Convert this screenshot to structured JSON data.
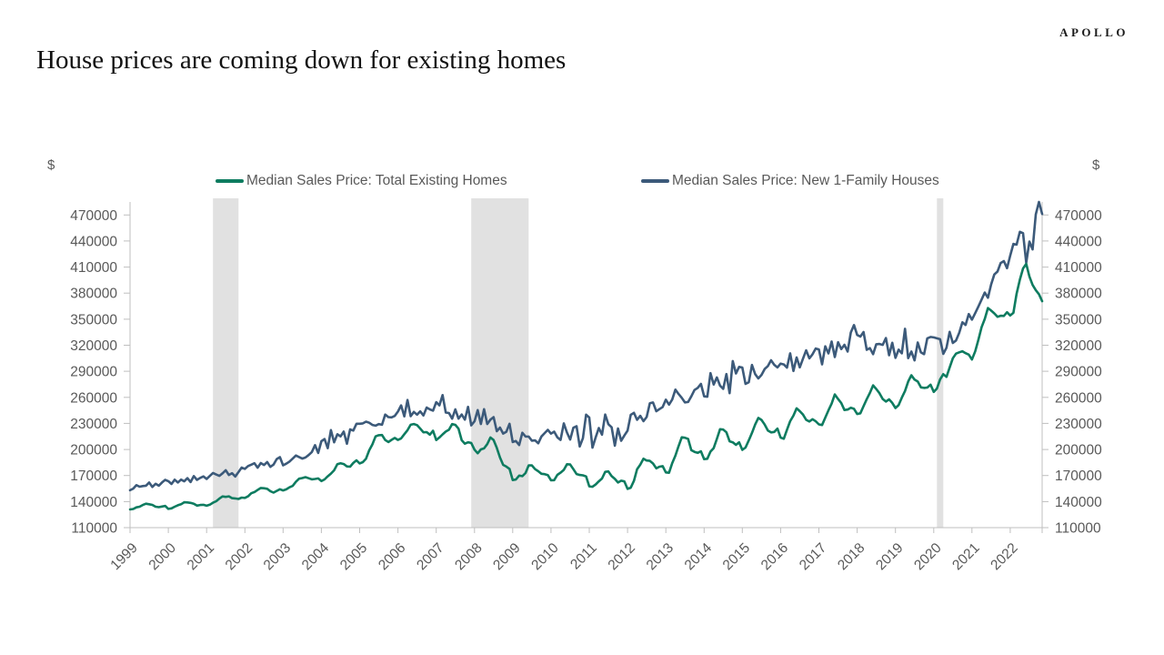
{
  "brand": {
    "logo": "APOLLO"
  },
  "title": "House prices are coming down for existing homes",
  "axes": {
    "left_unit": "$",
    "right_unit": "$"
  },
  "legend": [
    {
      "label": "Median Sales Price: Total Existing Homes",
      "color": "#0E7C60"
    },
    {
      "label": "Median Sales Price: New 1-Family Houses",
      "color": "#3C5A7A"
    }
  ],
  "colors": {
    "band": "#E1E1E1",
    "axis": "#BFBFBF",
    "tick_text": "#595959",
    "title_text": "#121212"
  },
  "chart_data": {
    "type": "line",
    "title": "House prices are coming down for existing homes",
    "xlabel": "",
    "ylabel": "$",
    "x_unit": "month",
    "x_start": "1999-01",
    "x_end": "2022-11",
    "x_tick_labels": [
      "1999",
      "2000",
      "2001",
      "2002",
      "2003",
      "2004",
      "2005",
      "2006",
      "2007",
      "2008",
      "2009",
      "2010",
      "2011",
      "2012",
      "2013",
      "2014",
      "2015",
      "2016",
      "2017",
      "2018",
      "2019",
      "2020",
      "2021",
      "2022"
    ],
    "y_ticks": [
      110000,
      140000,
      170000,
      200000,
      230000,
      260000,
      290000,
      320000,
      350000,
      380000,
      410000,
      440000,
      470000
    ],
    "ylim": [
      110000,
      470000
    ],
    "y_unit": "USD",
    "grid": false,
    "legend_position": "top",
    "recession_bands": [
      {
        "from": "2001-03",
        "to": "2001-11"
      },
      {
        "from": "2007-12",
        "to": "2009-06"
      },
      {
        "from": "2020-02",
        "to": "2020-04"
      }
    ],
    "series": [
      {
        "name": "Median Sales Price: Total Existing Homes",
        "color": "#0E7C60",
        "values": [
          131000,
          131500,
          133400,
          134100,
          136100,
          137500,
          136900,
          136200,
          134100,
          133600,
          134300,
          135000,
          131600,
          132200,
          134100,
          135800,
          136900,
          139200,
          139000,
          138500,
          137500,
          135400,
          136100,
          136300,
          135200,
          136400,
          138700,
          140400,
          143400,
          145900,
          145400,
          146000,
          143900,
          143600,
          143000,
          144600,
          144200,
          146000,
          149600,
          151000,
          153400,
          155700,
          155400,
          154700,
          152000,
          150300,
          152300,
          154200,
          152800,
          154100,
          156400,
          158100,
          162800,
          166400,
          167100,
          168100,
          166900,
          165600,
          166000,
          166700,
          163600,
          165500,
          169100,
          172200,
          176000,
          183100,
          184200,
          183200,
          180500,
          180200,
          184500,
          187500,
          184000,
          185400,
          189400,
          199000,
          205800,
          215100,
          216400,
          216600,
          210900,
          208600,
          211100,
          213300,
          211000,
          212800,
          217600,
          222200,
          228500,
          229300,
          228000,
          224100,
          219800,
          220000,
          217000,
          221600,
          210900,
          213800,
          217400,
          220600,
          222700,
          229200,
          228400,
          224000,
          210700,
          206700,
          208300,
          207500,
          199800,
          195600,
          200100,
          201200,
          206200,
          213800,
          210900,
          201900,
          190800,
          182300,
          180300,
          177700,
          164800,
          165400,
          169900,
          169300,
          172800,
          181800,
          181600,
          177300,
          174900,
          172000,
          171600,
          170500,
          164600,
          164700,
          170700,
          173300,
          176500,
          183000,
          182700,
          177300,
          171700,
          170600,
          170200,
          169000,
          157600,
          157000,
          159600,
          163300,
          166600,
          174200,
          174700,
          169300,
          166100,
          161900,
          164000,
          163200,
          154600,
          156000,
          163800,
          177400,
          182600,
          189400,
          187300,
          186900,
          183800,
          178300,
          180200,
          180800,
          173600,
          173200,
          184300,
          192800,
          203900,
          214000,
          213500,
          212100,
          199200,
          197200,
          196100,
          197900,
          188900,
          189300,
          197600,
          201500,
          212100,
          223300,
          222900,
          219800,
          209400,
          208300,
          205300,
          208200,
          199600,
          202200,
          210400,
          219000,
          228700,
          236300,
          234000,
          228700,
          221900,
          219700,
          220200,
          224100,
          213700,
          212300,
          222700,
          232500,
          238900,
          247400,
          244100,
          240200,
          234100,
          232200,
          234900,
          232400,
          228900,
          228100,
          236600,
          245000,
          252800,
          263300,
          258100,
          253400,
          245400,
          246000,
          248000,
          246800,
          240800,
          241700,
          249800,
          257900,
          265100,
          273800,
          269600,
          264800,
          258100,
          255200,
          257700,
          253600,
          247700,
          251100,
          259700,
          267300,
          278200,
          285400,
          280400,
          278200,
          271500,
          270900,
          271300,
          274500,
          266300,
          270100,
          280600,
          286700,
          283600,
          294400,
          305000,
          310400,
          311800,
          313100,
          310900,
          309200,
          303600,
          313000,
          326300,
          340700,
          350300,
          362800,
          359900,
          356700,
          352800,
          353900,
          353700,
          358000,
          354300,
          357300,
          379300,
          395500,
          408400,
          413800,
          399200,
          389500,
          383500,
          378800,
          370700
        ]
      },
      {
        "name": "Median Sales Price: New 1-Family Houses",
        "color": "#3C5A7A",
        "values": [
          153000,
          154900,
          158900,
          157100,
          157900,
          158300,
          162000,
          156800,
          160500,
          158300,
          162000,
          165000,
          163500,
          160300,
          165200,
          162000,
          165300,
          163300,
          167000,
          162500,
          169400,
          165000,
          167300,
          169000,
          166000,
          169500,
          172900,
          171200,
          169600,
          172500,
          176100,
          170600,
          172600,
          168900,
          173900,
          179100,
          177700,
          180900,
          182500,
          184200,
          179000,
          184400,
          182100,
          185500,
          180000,
          182600,
          189000,
          191200,
          181700,
          183600,
          186000,
          189500,
          193100,
          191300,
          189500,
          190800,
          193600,
          197000,
          205000,
          196000,
          209500,
          212000,
          201400,
          222300,
          208200,
          217600,
          215100,
          220600,
          206600,
          223100,
          221800,
          229600,
          229600,
          230000,
          232000,
          230800,
          228300,
          227400,
          229200,
          228500,
          240200,
          237300,
          237000,
          238600,
          243700,
          250800,
          238100,
          257000,
          238300,
          243200,
          240100,
          243900,
          239100,
          248300,
          246200,
          244700,
          254400,
          250800,
          262600,
          242500,
          242000,
          235500,
          246200,
          235500,
          240300,
          234300,
          249100,
          227700,
          232400,
          245300,
          229300,
          246400,
          229300,
          234300,
          237300,
          221000,
          225200,
          218300,
          220400,
          229600,
          208600,
          209700,
          205100,
          219200,
          214900,
          214800,
          210100,
          210400,
          207100,
          215000,
          218800,
          222600,
          218200,
          220500,
          214000,
          211000,
          230000,
          219500,
          211400,
          225000,
          226800,
          203400,
          213000,
          240100,
          236700,
          202100,
          213800,
          224700,
          217000,
          240200,
          229100,
          225500,
          204400,
          224200,
          210000,
          216100,
          221700,
          239900,
          242200,
          234100,
          238700,
          232600,
          237400,
          253200,
          254100,
          244100,
          246500,
          248900,
          257400,
          251600,
          257500,
          268900,
          263900,
          259500,
          254100,
          254600,
          261100,
          268500,
          270900,
          275500,
          261100,
          260700,
          287900,
          274800,
          282900,
          273500,
          269800,
          286800,
          264800,
          301800,
          287500,
          295100,
          294300,
          275500,
          277400,
          297300,
          286800,
          281800,
          285900,
          292700,
          296000,
          302700,
          297500,
          294400,
          298800,
          297900,
          294200,
          310700,
          290400,
          306000,
          294600,
          304500,
          314100,
          304900,
          309600,
          316200,
          315200,
          298000,
          318700,
          310600,
          324300,
          306400,
          323500,
          315600,
          320500,
          312800,
          334700,
          343300,
          331800,
          330000,
          335200,
          314800,
          316700,
          309700,
          321200,
          321500,
          320400,
          328300,
          308500,
          322800,
          305400,
          315000,
          310700,
          339000,
          305100,
          312800,
          302500,
          323100,
          311700,
          309700,
          328000,
          329500,
          329000,
          328000,
          326900,
          310100,
          317100,
          335400,
          322600,
          325500,
          334300,
          346400,
          343400,
          355900,
          349400,
          357000,
          364600,
          372600,
          380700,
          374700,
          390000,
          401500,
          404800,
          414700,
          416900,
          408700,
          423300,
          436700,
          435900,
          450600,
          449000,
          414900,
          439400,
          430300,
          470600,
          485000,
          471200
        ]
      }
    ]
  }
}
